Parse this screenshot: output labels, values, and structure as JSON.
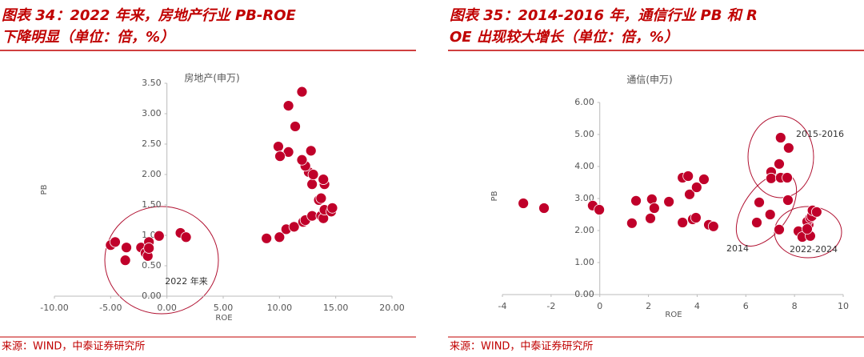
{
  "chart_data": [
    {
      "type": "scatter",
      "title": "图表 34：2022 年来，房地产行业 PB-ROE 下降明显（单位：倍，%）",
      "subtitle": "房地产(申万)",
      "x_label": "ROE",
      "y_label": "PB",
      "source": "来源：WIND，中泰证券研究所",
      "color": "#c0002a",
      "annotations": [
        "2022 年来"
      ],
      "xlim": [
        -10,
        20
      ],
      "xticks": [
        {
          "value": -10,
          "label": "-10.00"
        },
        {
          "value": -5,
          "label": "-5.00"
        },
        {
          "value": 0,
          "label": "0.00"
        },
        {
          "value": 5,
          "label": "5.00"
        },
        {
          "value": 10,
          "label": "10.00"
        },
        {
          "value": 15,
          "label": "15.00"
        },
        {
          "value": 20,
          "label": "20.00"
        }
      ],
      "ylim": [
        0,
        3.5
      ],
      "yticks": [
        {
          "value": 0,
          "label": "0.00"
        },
        {
          "value": 0.5,
          "label": "0.50"
        },
        {
          "value": 1,
          "label": "1.00"
        },
        {
          "value": 1.5,
          "label": "1.50"
        },
        {
          "value": 2,
          "label": "2.00"
        },
        {
          "value": 2.5,
          "label": "2.50"
        },
        {
          "value": 3,
          "label": "3.00"
        },
        {
          "value": 3.5,
          "label": "3.50"
        }
      ],
      "x": [
        -5.0,
        -4.6,
        -3.7,
        -3.6,
        -2.3,
        -1.9,
        -1.7,
        -1.6,
        -1.6,
        -0.7,
        1.2,
        1.7,
        8.85,
        10.0,
        10.6,
        11.3,
        12.1,
        12.3,
        12.9,
        13.5,
        13.7,
        13.7,
        13.9,
        14.0,
        14.6,
        14.7,
        14.0,
        12.9,
        13.9,
        12.6,
        12.3,
        12.0,
        12.8,
        13.0,
        10.8,
        9.9,
        10.05,
        11.4,
        10.8,
        12.0
      ],
      "values": [
        0.84,
        0.89,
        0.59,
        0.8,
        0.8,
        0.71,
        0.66,
        0.89,
        0.79,
        0.99,
        1.04,
        0.97,
        0.95,
        0.97,
        1.1,
        1.14,
        1.22,
        1.25,
        1.32,
        1.58,
        1.61,
        1.32,
        1.28,
        1.42,
        1.39,
        1.45,
        1.84,
        1.84,
        1.92,
        2.04,
        2.14,
        2.24,
        2.39,
        2.0,
        2.37,
        2.46,
        2.3,
        2.79,
        3.13,
        3.36
      ]
    },
    {
      "type": "scatter",
      "title": "图表 35：2014-2016 年，通信行业 PB 和 ROE 出现较大增长（单位：倍，%）",
      "subtitle": "通信(申万)",
      "x_label": "ROE",
      "y_label": "PB",
      "source": "来源：WIND，中泰证券研究所",
      "color": "#c0002a",
      "annotations": [
        "2015-2016",
        "2014",
        "2022-2024"
      ],
      "xlim": [
        -4,
        10
      ],
      "xticks": [
        -4,
        -2,
        0,
        2,
        4,
        6,
        8,
        10
      ],
      "ylim": [
        0,
        6
      ],
      "yticks": [
        {
          "value": 0,
          "label": "0.00"
        },
        {
          "value": 1,
          "label": "1.00"
        },
        {
          "value": 2,
          "label": "2.00"
        },
        {
          "value": 3,
          "label": "3.00"
        },
        {
          "value": 4,
          "label": "4.00"
        },
        {
          "value": 5,
          "label": "5.00"
        },
        {
          "value": 6,
          "label": "6.00"
        }
      ],
      "x": [
        -3.14,
        -2.29,
        -0.29,
        -0.02,
        1.49,
        1.32,
        2.14,
        2.08,
        2.24,
        2.84,
        3.4,
        3.4,
        3.63,
        3.69,
        3.98,
        4.28,
        3.82,
        3.95,
        4.48,
        4.67,
        6.45,
        6.55,
        7.0,
        7.37,
        7.73,
        7.43,
        7.76,
        7.37,
        7.04,
        7.04,
        7.43,
        7.7,
        8.16,
        8.32,
        8.65,
        8.58,
        8.52,
        8.65,
        8.71,
        8.74,
        8.91,
        8.52
      ],
      "values": [
        2.85,
        2.7,
        2.78,
        2.65,
        2.93,
        2.23,
        2.98,
        2.38,
        2.7,
        2.9,
        2.25,
        3.65,
        3.7,
        3.13,
        3.35,
        3.6,
        2.35,
        2.4,
        2.18,
        2.13,
        2.25,
        2.88,
        2.5,
        2.03,
        2.95,
        4.9,
        4.58,
        4.08,
        3.83,
        3.63,
        3.65,
        3.65,
        1.98,
        1.8,
        1.83,
        2.18,
        2.28,
        2.4,
        2.45,
        2.63,
        2.58,
        2.05
      ]
    }
  ]
}
